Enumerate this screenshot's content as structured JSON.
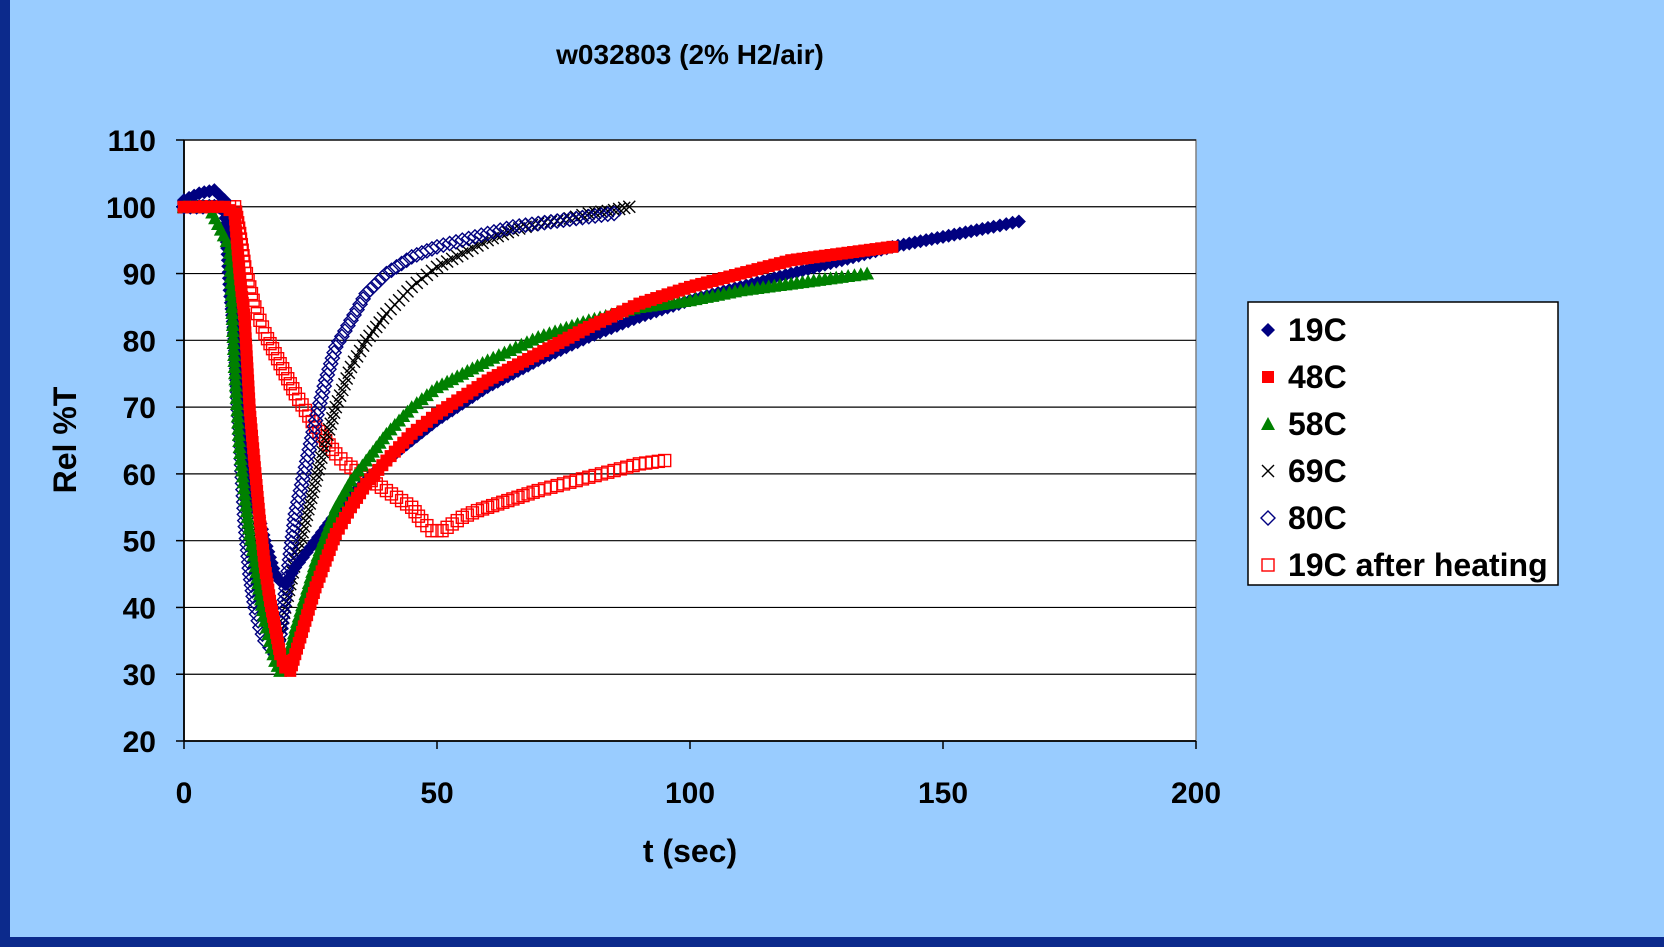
{
  "chart_data": {
    "type": "scatter",
    "title": "w032803 (2% H2/air)",
    "xlabel": "t (sec)",
    "ylabel": "Rel %T",
    "xlim": [
      0,
      200
    ],
    "ylim": [
      20,
      110
    ],
    "xticks": [
      0,
      50,
      100,
      150,
      200
    ],
    "yticks": [
      20,
      30,
      40,
      50,
      60,
      70,
      80,
      90,
      100,
      110
    ],
    "grid": "horizontal",
    "legend_position": "right",
    "series": [
      {
        "name": "19C",
        "marker": "diamond-filled",
        "color": "#000080",
        "points": [
          [
            0,
            101
          ],
          [
            3,
            102
          ],
          [
            6,
            102.5
          ],
          [
            8,
            101
          ],
          [
            9,
            87.5
          ],
          [
            10,
            80
          ],
          [
            11,
            74
          ],
          [
            12,
            66
          ],
          [
            13,
            59
          ],
          [
            14,
            56
          ],
          [
            16,
            50
          ],
          [
            18,
            45
          ],
          [
            19,
            44
          ],
          [
            20,
            43.5
          ],
          [
            22,
            46
          ],
          [
            25,
            49
          ],
          [
            28,
            52
          ],
          [
            32,
            56
          ],
          [
            36,
            59
          ],
          [
            40,
            62
          ],
          [
            45,
            65
          ],
          [
            50,
            68
          ],
          [
            60,
            73
          ],
          [
            70,
            77
          ],
          [
            80,
            80.5
          ],
          [
            90,
            83.5
          ],
          [
            100,
            86
          ],
          [
            110,
            88
          ],
          [
            120,
            90
          ],
          [
            130,
            92
          ],
          [
            140,
            94
          ],
          [
            150,
            95.5
          ],
          [
            160,
            97
          ],
          [
            165,
            97.8
          ]
        ]
      },
      {
        "name": "48C",
        "marker": "square-filled",
        "color": "#ff0000",
        "points": [
          [
            0,
            100
          ],
          [
            4,
            100
          ],
          [
            8,
            100
          ],
          [
            10,
            99
          ],
          [
            11,
            90
          ],
          [
            12,
            83
          ],
          [
            13,
            69.5
          ],
          [
            14,
            61
          ],
          [
            15,
            53
          ],
          [
            16,
            46
          ],
          [
            17,
            41
          ],
          [
            18,
            37
          ],
          [
            19,
            33
          ],
          [
            20,
            31
          ],
          [
            21,
            30.5
          ],
          [
            22,
            33
          ],
          [
            24,
            38
          ],
          [
            26,
            43
          ],
          [
            28,
            47
          ],
          [
            30,
            51
          ],
          [
            33,
            55
          ],
          [
            36,
            58.5
          ],
          [
            40,
            62
          ],
          [
            45,
            66
          ],
          [
            50,
            69
          ],
          [
            60,
            74
          ],
          [
            70,
            78
          ],
          [
            80,
            82
          ],
          [
            90,
            85.5
          ],
          [
            100,
            88
          ],
          [
            110,
            90
          ],
          [
            120,
            92
          ],
          [
            130,
            93
          ],
          [
            140,
            94
          ]
        ]
      },
      {
        "name": "58C",
        "marker": "triangle-filled",
        "color": "#008000",
        "points": [
          [
            0,
            100
          ],
          [
            5,
            100
          ],
          [
            9,
            94
          ],
          [
            10,
            76
          ],
          [
            11,
            64
          ],
          [
            12,
            57
          ],
          [
            13,
            51
          ],
          [
            14,
            47
          ],
          [
            15,
            42
          ],
          [
            16,
            38
          ],
          [
            17,
            35
          ],
          [
            18,
            32
          ],
          [
            19,
            30.5
          ],
          [
            20,
            31
          ],
          [
            22,
            37
          ],
          [
            24,
            42
          ],
          [
            26,
            47
          ],
          [
            28,
            51
          ],
          [
            30,
            55
          ],
          [
            33,
            59
          ],
          [
            36,
            62
          ],
          [
            40,
            66
          ],
          [
            45,
            70
          ],
          [
            50,
            73
          ],
          [
            60,
            77
          ],
          [
            70,
            80.5
          ],
          [
            80,
            83
          ],
          [
            90,
            85
          ],
          [
            100,
            86
          ],
          [
            110,
            87.5
          ],
          [
            120,
            88.5
          ],
          [
            130,
            89.5
          ],
          [
            135,
            90
          ]
        ]
      },
      {
        "name": "69C",
        "marker": "x",
        "color": "#000000",
        "points": [
          [
            0,
            100
          ],
          [
            5,
            100
          ],
          [
            8,
            100
          ],
          [
            9,
            99
          ],
          [
            10,
            86
          ],
          [
            11,
            72
          ],
          [
            12,
            58
          ],
          [
            13,
            51
          ],
          [
            14,
            46
          ],
          [
            15,
            42
          ],
          [
            16,
            39
          ],
          [
            17,
            37
          ],
          [
            18,
            35
          ],
          [
            19,
            36
          ],
          [
            20,
            40
          ],
          [
            22,
            47
          ],
          [
            24,
            53
          ],
          [
            26,
            59
          ],
          [
            28,
            65
          ],
          [
            30,
            70
          ],
          [
            33,
            76
          ],
          [
            36,
            80
          ],
          [
            40,
            84
          ],
          [
            45,
            88
          ],
          [
            50,
            91
          ],
          [
            55,
            93
          ],
          [
            60,
            95
          ],
          [
            65,
            96.5
          ],
          [
            70,
            97.5
          ],
          [
            75,
            98
          ],
          [
            80,
            99
          ],
          [
            85,
            99.5
          ],
          [
            88,
            100
          ]
        ]
      },
      {
        "name": "80C",
        "marker": "diamond-open",
        "color": "#000080",
        "points": [
          [
            0,
            100
          ],
          [
            5,
            100
          ],
          [
            8,
            100
          ],
          [
            9,
            98
          ],
          [
            10,
            82
          ],
          [
            11,
            66
          ],
          [
            12,
            53
          ],
          [
            13,
            45
          ],
          [
            14,
            40
          ],
          [
            15,
            37
          ],
          [
            16,
            35
          ],
          [
            17,
            34
          ],
          [
            18,
            33
          ],
          [
            19,
            36
          ],
          [
            20,
            42
          ],
          [
            21,
            48
          ],
          [
            22,
            54
          ],
          [
            24,
            61
          ],
          [
            26,
            68
          ],
          [
            28,
            74
          ],
          [
            30,
            79
          ],
          [
            33,
            83
          ],
          [
            36,
            87
          ],
          [
            40,
            90
          ],
          [
            45,
            92.5
          ],
          [
            50,
            94
          ],
          [
            55,
            95
          ],
          [
            60,
            96
          ],
          [
            65,
            97
          ],
          [
            70,
            97.5
          ],
          [
            75,
            98
          ],
          [
            80,
            98.5
          ],
          [
            85,
            99
          ]
        ]
      },
      {
        "name": "19C after heating",
        "marker": "square-open",
        "color": "#ff0000",
        "points": [
          [
            0,
            100
          ],
          [
            4,
            100
          ],
          [
            8,
            100
          ],
          [
            10,
            100
          ],
          [
            11,
            96
          ],
          [
            12,
            91
          ],
          [
            13,
            88
          ],
          [
            14,
            85
          ],
          [
            15,
            83
          ],
          [
            16,
            81
          ],
          [
            18,
            78
          ],
          [
            20,
            75
          ],
          [
            22,
            72
          ],
          [
            24,
            69.5
          ],
          [
            26,
            67
          ],
          [
            28,
            65
          ],
          [
            30,
            63
          ],
          [
            32,
            61.5
          ],
          [
            35,
            60
          ],
          [
            38,
            58.5
          ],
          [
            40,
            57.5
          ],
          [
            43,
            56
          ],
          [
            45,
            55
          ],
          [
            47,
            53
          ],
          [
            49,
            51.5
          ],
          [
            51,
            51.5
          ],
          [
            53,
            52.5
          ],
          [
            55,
            53.5
          ],
          [
            58,
            54.5
          ],
          [
            62,
            55.5
          ],
          [
            66,
            56.5
          ],
          [
            70,
            57.5
          ],
          [
            75,
            58.5
          ],
          [
            80,
            59.5
          ],
          [
            85,
            60.5
          ],
          [
            90,
            61.5
          ],
          [
            95,
            62
          ]
        ]
      }
    ]
  }
}
